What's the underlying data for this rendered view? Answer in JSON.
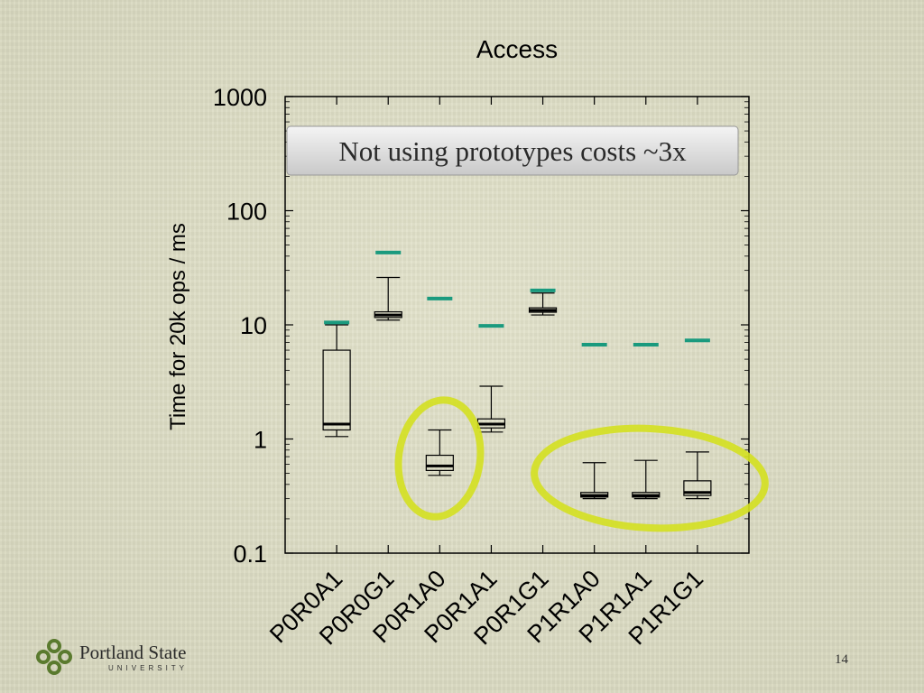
{
  "chart_data": {
    "type": "box",
    "title": "Access",
    "ylabel": "Time for 20k ops / ms",
    "yscale": "log",
    "ylim": [
      0.1,
      1000
    ],
    "yticks": [
      "0.1",
      "1",
      "10",
      "100",
      "1000"
    ],
    "categories": [
      "P0R0A1",
      "P0R0G1",
      "P0R1A0",
      "P0R1A1",
      "P0R1G1",
      "P1R1A0",
      "P1R1A1",
      "P1R1G1"
    ],
    "boxes": [
      {
        "min": 1.05,
        "q1": 1.2,
        "median": 1.35,
        "q3": 6.0,
        "max": 10.0
      },
      {
        "min": 11.0,
        "q1": 11.6,
        "median": 12.2,
        "q3": 13.0,
        "max": 26.0
      },
      {
        "min": 0.48,
        "q1": 0.53,
        "median": 0.58,
        "q3": 0.72,
        "max": 1.2
      },
      {
        "min": 1.15,
        "q1": 1.25,
        "median": 1.35,
        "q3": 1.5,
        "max": 2.9
      },
      {
        "min": 12.2,
        "q1": 12.9,
        "median": 13.4,
        "q3": 14.1,
        "max": 19.0
      },
      {
        "min": 0.3,
        "q1": 0.31,
        "median": 0.32,
        "q3": 0.34,
        "max": 0.62
      },
      {
        "min": 0.3,
        "q1": 0.31,
        "median": 0.32,
        "q3": 0.34,
        "max": 0.65
      },
      {
        "min": 0.3,
        "q1": 0.32,
        "median": 0.34,
        "q3": 0.43,
        "max": 0.77
      }
    ],
    "markers": [
      10.5,
      43.0,
      17.0,
      9.8,
      20.0,
      6.7,
      6.7,
      7.3
    ],
    "marker_color": "#1a9a7e",
    "annotation": "Not using prototypes costs ~3x",
    "highlight_color": "#d4e020"
  },
  "footer": {
    "logo_text": "Portland State",
    "logo_sub": "UNIVERSITY",
    "page_number": "14"
  }
}
